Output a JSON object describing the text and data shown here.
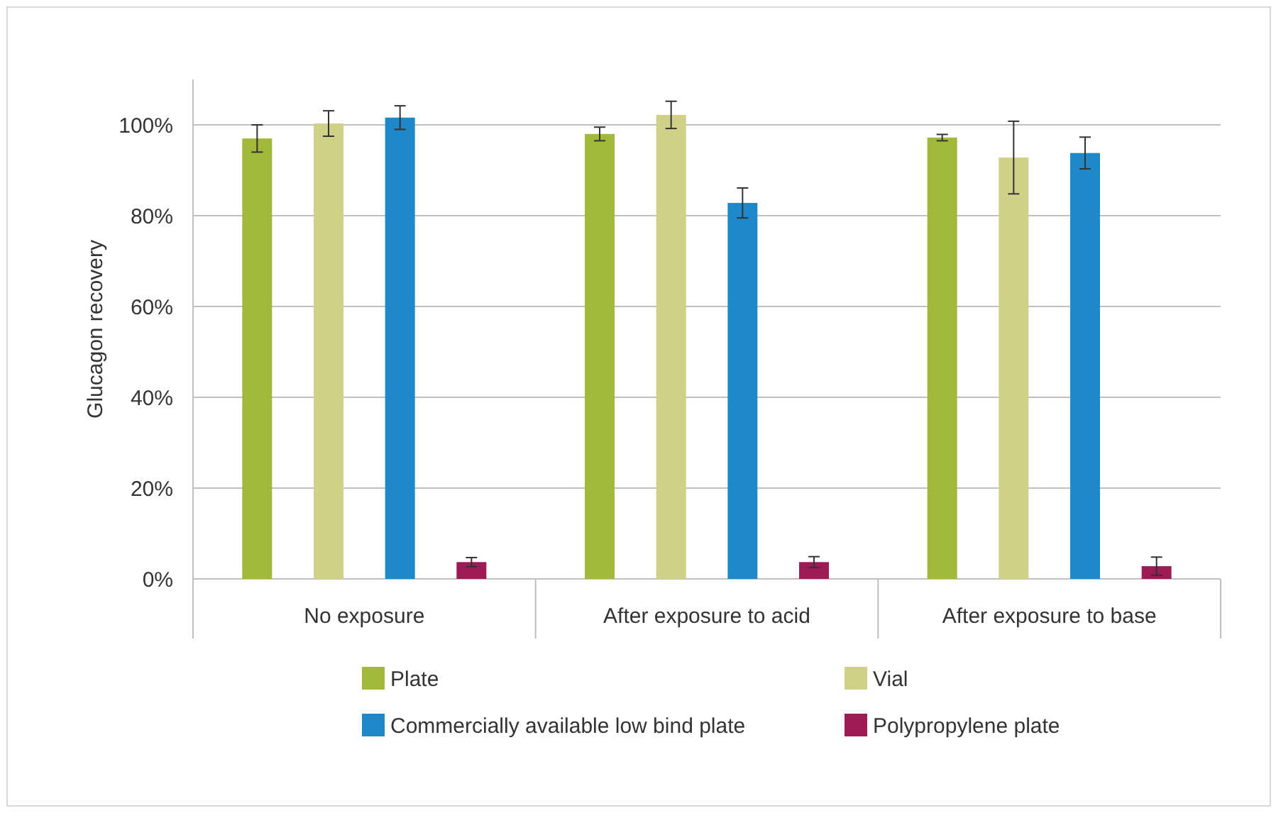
{
  "chart_data": {
    "type": "bar",
    "ylabel": "Glucagon recovery",
    "categories": [
      "No exposure",
      "After exposure to acid",
      "After exposure to base"
    ],
    "series": [
      {
        "name": "Plate",
        "color": "#a2b83a",
        "values": [
          97,
          98,
          97.2
        ],
        "errors": [
          3,
          1.5,
          0.7
        ]
      },
      {
        "name": "Vial",
        "color": "#d1d088",
        "values": [
          100.3,
          102.2,
          92.8
        ],
        "errors": [
          2.8,
          3,
          8
        ]
      },
      {
        "name": "Commercially available low bind plate",
        "color": "#1f88c9",
        "values": [
          101.6,
          82.8,
          93.8
        ],
        "errors": [
          2.6,
          3.3,
          3.5
        ]
      },
      {
        "name": "Polypropylene plate",
        "color": "#9e1a55",
        "values": [
          3.7,
          3.7,
          2.8
        ],
        "errors": [
          1,
          1.2,
          2
        ]
      }
    ],
    "ylim": [
      0,
      110
    ],
    "yticks": [
      {
        "value": 0,
        "label": "0%"
      },
      {
        "value": 20,
        "label": "20%"
      },
      {
        "value": 40,
        "label": "40%"
      },
      {
        "value": 60,
        "label": "60%"
      },
      {
        "value": 80,
        "label": "80%"
      },
      {
        "value": 100,
        "label": "100%"
      }
    ],
    "grid": "y",
    "legend": "bottom"
  }
}
